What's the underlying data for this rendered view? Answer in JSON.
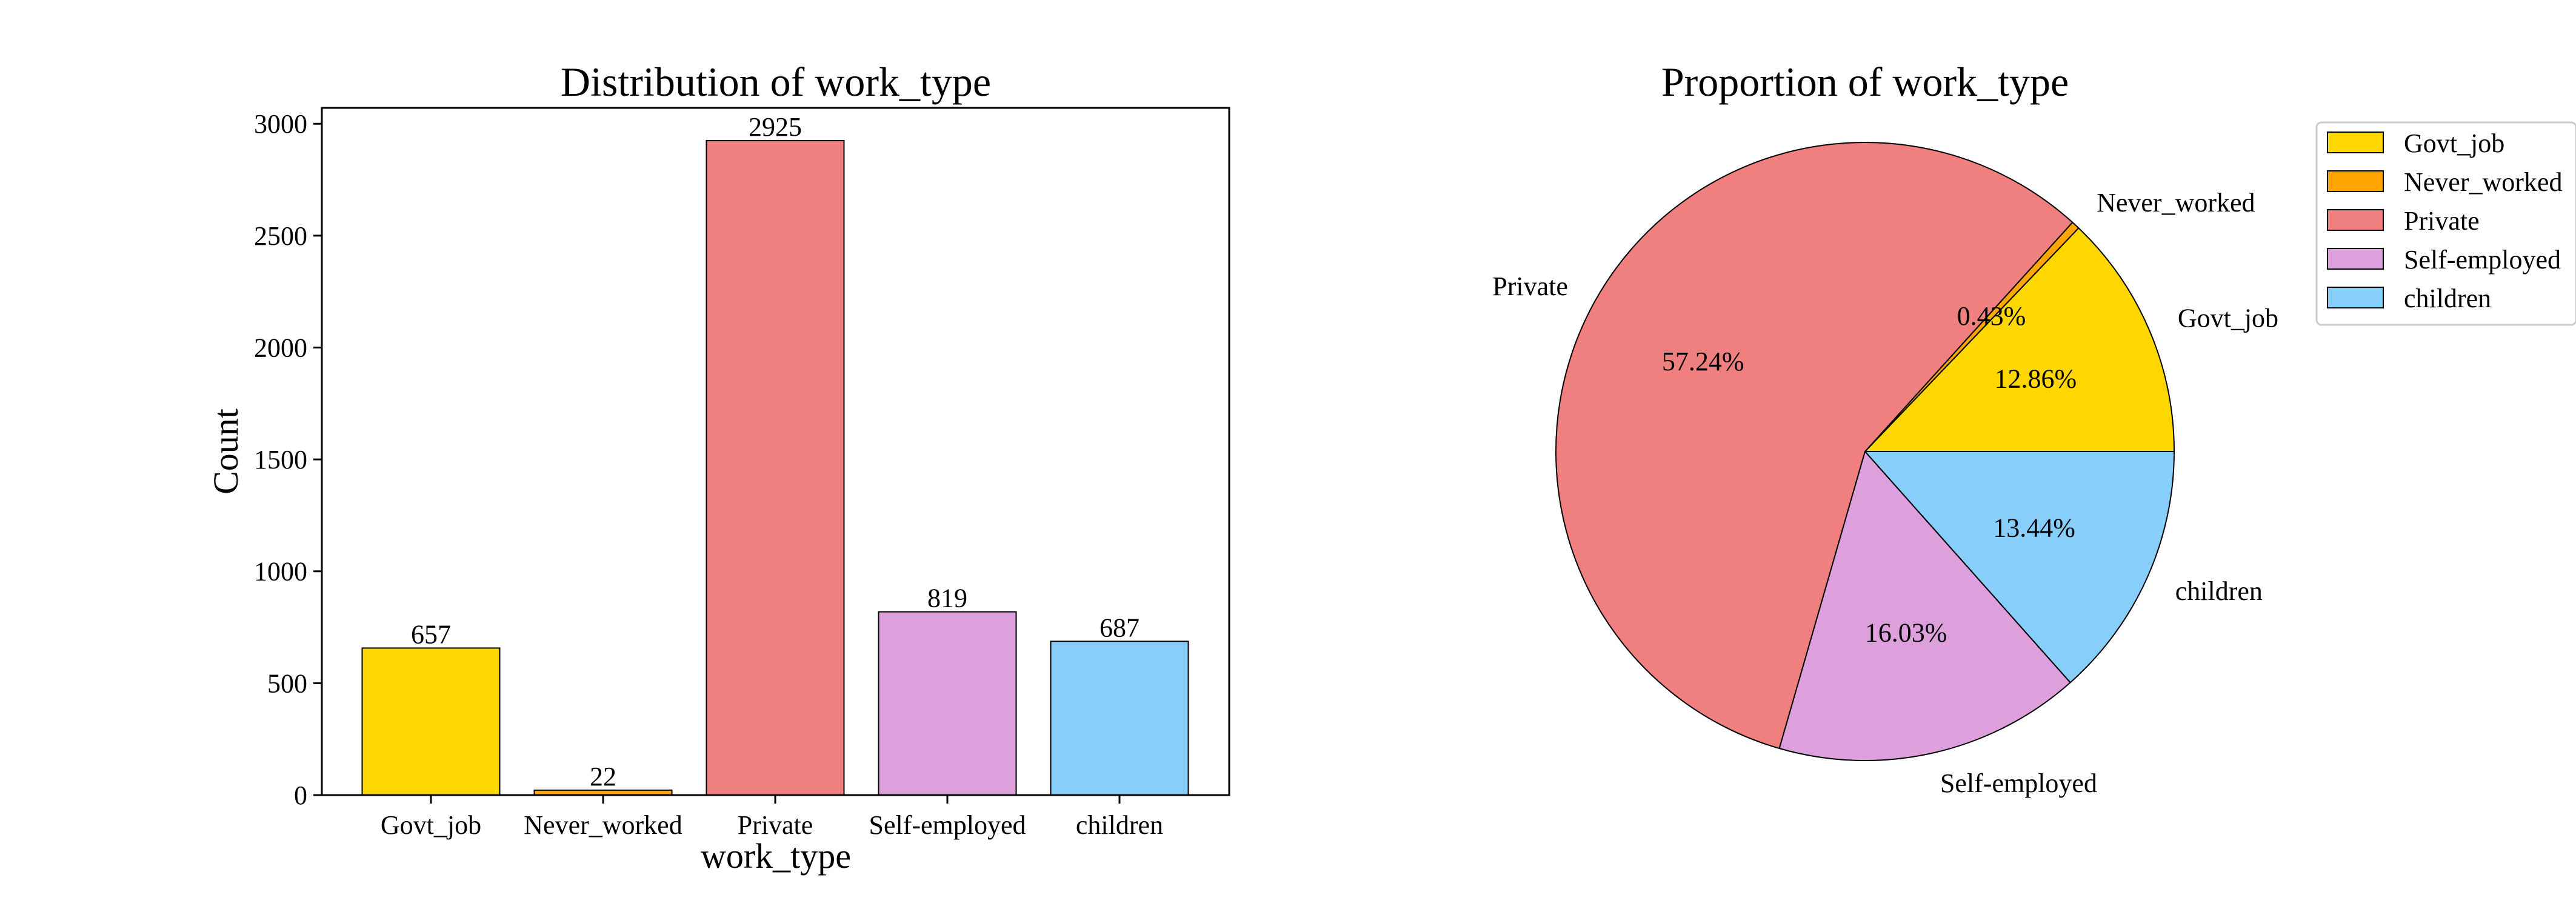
{
  "chart_data": [
    {
      "type": "bar",
      "title": "Distribution of work_type",
      "xlabel": "work_type",
      "ylabel": "Count",
      "categories": [
        "Govt_job",
        "Never_worked",
        "Private",
        "Self-employed",
        "children"
      ],
      "values": [
        657,
        22,
        2925,
        819,
        687
      ],
      "data_labels": [
        "657",
        "22",
        "2925",
        "819",
        "687"
      ],
      "colors": [
        "#FFD700",
        "#FFA500",
        "#F08080",
        "#DDA0DD",
        "#87CEFA"
      ],
      "ylim": [
        0,
        3071
      ],
      "yticks": [
        0,
        500,
        1000,
        1500,
        2000,
        2500,
        3000
      ],
      "grid": false,
      "legend": "none"
    },
    {
      "type": "pie",
      "title": "Proportion of work_type",
      "labels": [
        "Govt_job",
        "Never_worked",
        "Private",
        "Self-employed",
        "children"
      ],
      "values": [
        12.86,
        0.43,
        57.24,
        16.03,
        13.44
      ],
      "pct_labels": [
        "12.86%",
        "0.43%",
        "57.24%",
        "16.03%",
        "13.44%"
      ],
      "colors": [
        "#FFD700",
        "#FFA500",
        "#F08080",
        "#DDA0DD",
        "#87CEFA"
      ],
      "start_angle": 0,
      "direction": "counterclockwise",
      "legend": "top-right"
    }
  ]
}
